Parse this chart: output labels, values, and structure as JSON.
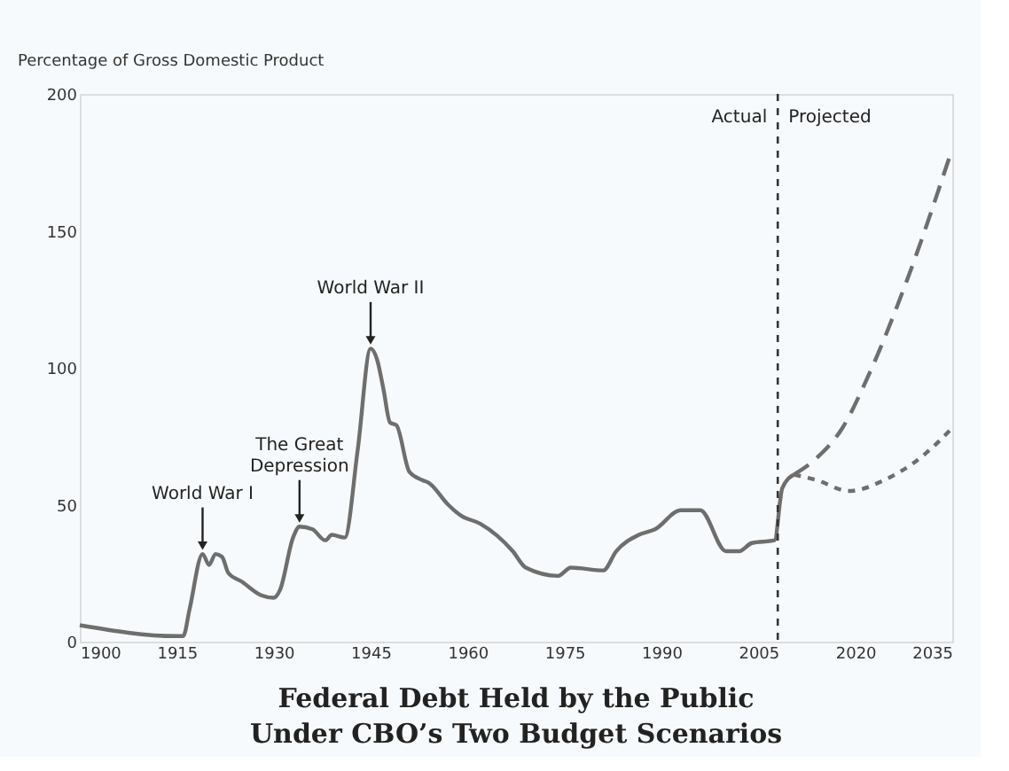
{
  "chart_data": {
    "type": "line",
    "title": "Federal Debt Held by the Public\nUnder CBO’s Two Budget Scenarios",
    "ylabel": "Percentage of Gross Domestic Product",
    "xlim": [
      1900,
      2035
    ],
    "xticks": [
      1900,
      1915,
      1930,
      1945,
      1960,
      1975,
      1990,
      2005,
      2020,
      2035
    ],
    "ylim": [
      0,
      200
    ],
    "yticks": [
      0,
      50,
      100,
      150,
      200
    ],
    "grid": false,
    "series": [
      {
        "color": "#6e6e6e",
        "line_style": "solid",
        "x": [
          1900,
          1915,
          1916,
          1917,
          1919,
          1920,
          1921,
          1922,
          1923,
          1925,
          1928,
          1930,
          1931,
          1933,
          1934,
          1936,
          1938,
          1939,
          1941,
          1943,
          1945,
          1946,
          1947,
          1948,
          1949,
          1951,
          1953,
          1954,
          1957,
          1959,
          1962,
          1967,
          1969,
          1974,
          1976,
          1981,
          1983,
          1986.5,
          1989,
          1993,
          1996,
          2000,
          2002,
          2004,
          2007.5,
          2008.7,
          2010.5
        ],
        "values": [
          6,
          2,
          2,
          12,
          32,
          28,
          32,
          31,
          25,
          22,
          17,
          16,
          19,
          38,
          42,
          41,
          37,
          39,
          38,
          70,
          107,
          103,
          92,
          80,
          79,
          62,
          59,
          58,
          50,
          46,
          43,
          33,
          27,
          24,
          27,
          26,
          33,
          39,
          41,
          48,
          48,
          33,
          33,
          36,
          37,
          56,
          61
        ]
      },
      {
        "color": "#6e6e6e",
        "line_style": "dashed",
        "x": [
          2010.5,
          2014,
          2018,
          2022,
          2028,
          2035
        ],
        "values": [
          61,
          67,
          78,
          97,
          132,
          180
        ]
      },
      {
        "color": "#6e6e6e",
        "line_style": "dotted",
        "x": [
          2010.5,
          2014,
          2019,
          2024.5,
          2030,
          2035
        ],
        "values": [
          61,
          59,
          55,
          59,
          67,
          78
        ]
      }
    ],
    "ref_lines": [
      {
        "axis": "x",
        "value": 2008,
        "line_style": "dotted",
        "color": "#333333"
      }
    ],
    "annotations": [
      {
        "text": "World War I",
        "x": 1919,
        "y": 33
      },
      {
        "text": "The Great\nDepression",
        "x": 1934,
        "y": 43
      },
      {
        "text": "World War II",
        "x": 1945,
        "y": 108
      },
      "Actual",
      "Projected"
    ]
  }
}
